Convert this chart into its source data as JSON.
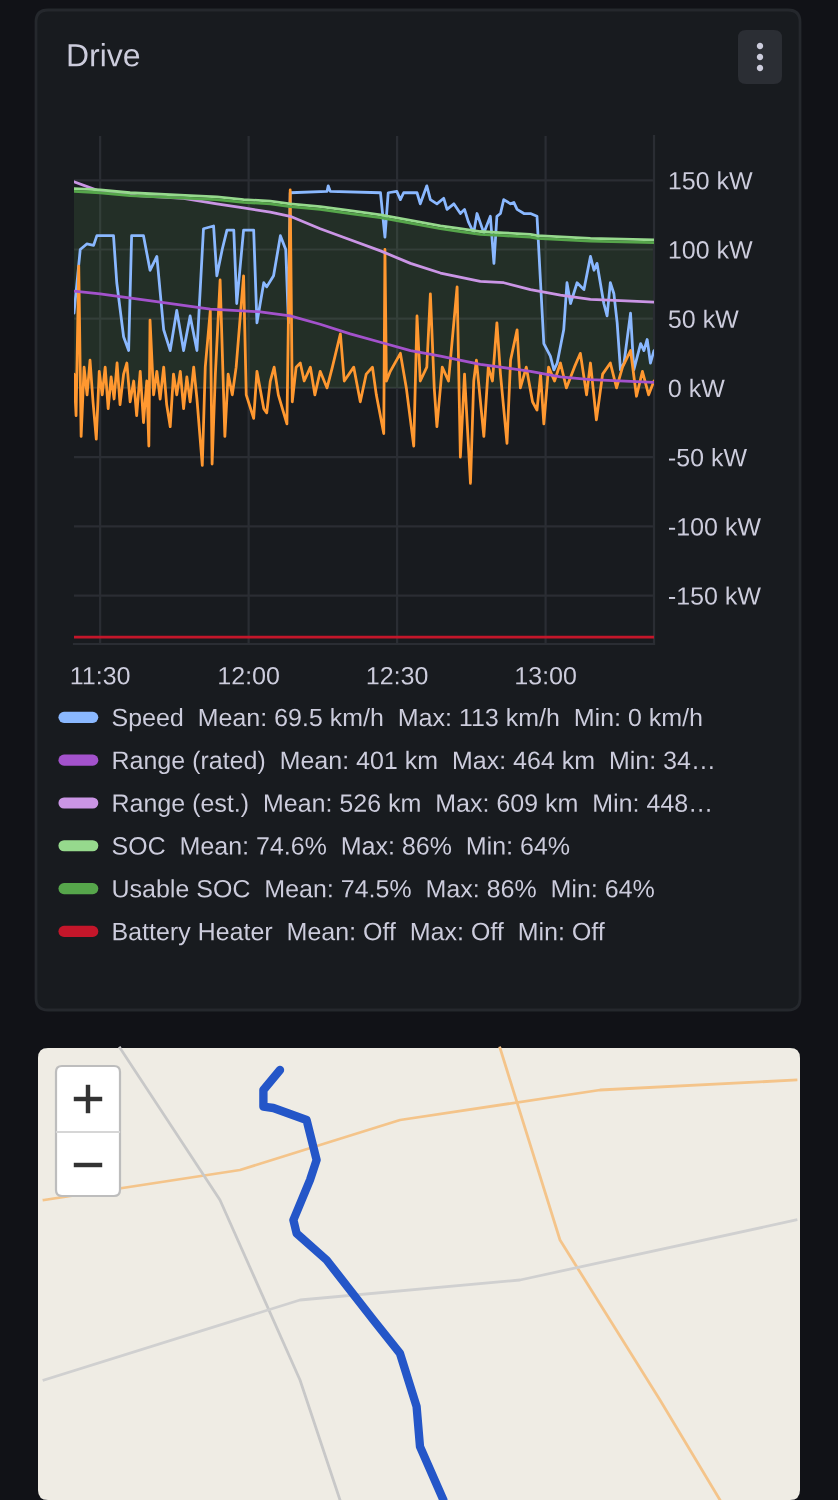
{
  "chart_data": {
    "type": "line",
    "title": "Drive",
    "xlim": [
      11.412,
      13.365
    ],
    "xticks": [
      {
        "value": 11.5,
        "label": "11:30"
      },
      {
        "value": 12,
        "label": "12:00"
      },
      {
        "value": 12.5,
        "label": "12:30"
      },
      {
        "value": 13,
        "label": "13:00"
      }
    ],
    "ylim": [
      -185,
      182
    ],
    "yticks": [
      {
        "value": -150,
        "label": "-150 kW"
      },
      {
        "value": -100,
        "label": "-100 kW"
      },
      {
        "value": -50,
        "label": "-50 kW"
      },
      {
        "value": 0,
        "label": "0 kW"
      },
      {
        "value": 50,
        "label": "50 kW"
      },
      {
        "value": 100,
        "label": "100 kW"
      },
      {
        "value": 150,
        "label": "150 kW"
      }
    ],
    "grid": true,
    "legend": "bottom",
    "series": [
      {
        "name": "Speed  Mean: 69.5 km/h  Max: 113 km/h  Min: 0 km/h",
        "color": "#8ab8ff",
        "x": [
          11.412,
          11.433,
          11.455,
          11.478,
          11.489,
          11.545,
          11.556,
          11.579,
          11.596,
          11.606,
          11.646,
          11.668,
          11.691,
          11.714,
          11.736,
          11.758,
          11.781,
          11.803,
          11.826,
          11.848,
          11.882,
          11.893,
          11.911,
          11.927,
          11.95,
          11.96,
          11.983,
          12.017,
          12.028,
          12.039,
          12.051,
          12.061,
          12.084,
          12.107,
          12.125,
          12.134,
          12.14,
          12.264,
          12.268,
          12.275,
          12.444,
          12.459,
          12.47,
          12.499,
          12.511,
          12.522,
          12.567,
          12.578,
          12.6,
          12.612,
          12.634,
          12.657,
          12.668,
          12.691,
          12.713,
          12.727,
          12.74,
          12.758,
          12.769,
          12.792,
          12.814,
          12.826,
          12.836,
          12.848,
          12.859,
          12.882,
          12.893,
          12.904,
          12.927,
          12.949,
          12.971,
          12.983,
          12.994,
          13.016,
          13.028,
          13.039,
          13.061,
          13.072,
          13.084,
          13.106,
          13.129,
          13.151,
          13.163,
          13.173,
          13.196,
          13.207,
          13.218,
          13.23,
          13.241,
          13.252,
          13.264,
          13.286,
          13.297,
          13.32,
          13.331,
          13.342,
          13.353,
          13.365
        ],
        "values": [
          54,
          100,
          104,
          103,
          110,
          110,
          76,
          37,
          27,
          110,
          110,
          85,
          95,
          42,
          27,
          56,
          27,
          52,
          27,
          115,
          117,
          81,
          100,
          114,
          114,
          61,
          114,
          114,
          47,
          61,
          76,
          73,
          81,
          110,
          100,
          47,
          141,
          142,
          146,
          142,
          141,
          109,
          141,
          142,
          136,
          141,
          141,
          133,
          146,
          136,
          133,
          137,
          129,
          133,
          126,
          129,
          120,
          112,
          126,
          112,
          124,
          90,
          124,
          126,
          136,
          133,
          134,
          129,
          126,
          126,
          124,
          76,
          32,
          23,
          13,
          18,
          42,
          76,
          61,
          76,
          71,
          95,
          85,
          90,
          61,
          52,
          76,
          68,
          47,
          13,
          18,
          54,
          13,
          32,
          27,
          35,
          18,
          27
        ]
      },
      {
        "color": "#ff9830",
        "x": [
          11.412,
          11.419,
          11.428,
          11.436,
          11.446,
          11.456,
          11.466,
          11.476,
          11.487,
          11.497,
          11.507,
          11.517,
          11.527,
          11.537,
          11.547,
          11.557,
          11.567,
          11.579,
          11.59,
          11.601,
          11.613,
          11.623,
          11.635,
          11.646,
          11.657,
          11.664,
          11.668,
          11.68,
          11.691,
          11.702,
          11.714,
          11.724,
          11.736,
          11.747,
          11.758,
          11.77,
          11.781,
          11.792,
          11.803,
          11.815,
          11.826,
          11.844,
          11.854,
          11.871,
          11.877,
          11.888,
          11.904,
          11.92,
          11.931,
          11.945,
          11.958,
          11.983,
          11.992,
          12.017,
          12.028,
          12.051,
          12.061,
          12.073,
          12.086,
          12.1,
          12.129,
          12.14,
          12.147,
          12.16,
          12.174,
          12.187,
          12.208,
          12.223,
          12.241,
          12.264,
          12.282,
          12.309,
          12.322,
          12.354,
          12.376,
          12.396,
          12.417,
          12.43,
          12.455,
          12.459,
          12.464,
          12.477,
          12.511,
          12.531,
          12.556,
          12.567,
          12.578,
          12.6,
          12.612,
          12.625,
          12.634,
          12.652,
          12.673,
          12.702,
          12.713,
          12.727,
          12.747,
          12.758,
          12.767,
          12.792,
          12.807,
          12.821,
          12.836,
          12.848,
          12.87,
          12.882,
          12.904,
          12.915,
          12.935,
          12.956,
          12.971,
          12.983,
          12.994,
          13.01,
          13.03,
          13.05,
          13.07,
          13.097,
          13.117,
          13.138,
          13.151,
          13.171,
          13.192,
          13.218,
          13.239,
          13.259,
          13.286,
          13.306,
          13.326,
          13.347,
          13.365
        ],
        "values": [
          10,
          -20,
          88,
          -35,
          15,
          -5,
          20,
          -10,
          -37,
          12,
          -5,
          15,
          -15,
          8,
          -8,
          18,
          -12,
          10,
          18,
          -10,
          5,
          -20,
          12,
          -25,
          5,
          -42,
          49,
          -5,
          12,
          -8,
          15,
          -12,
          -28,
          10,
          -5,
          12,
          -15,
          8,
          -10,
          15,
          -8,
          -56,
          15,
          56,
          -55,
          10,
          78,
          -35,
          10,
          -5,
          15,
          81,
          -5,
          -22,
          12,
          -15,
          -18,
          5,
          15,
          -5,
          -26,
          143,
          -10,
          15,
          18,
          5,
          15,
          -5,
          12,
          0,
          15,
          39,
          5,
          15,
          -10,
          10,
          15,
          -5,
          -33,
          100,
          5,
          12,
          25,
          0,
          -42,
          52,
          5,
          15,
          68,
          0,
          -28,
          15,
          5,
          73,
          -50,
          10,
          -69,
          5,
          20,
          -35,
          15,
          5,
          47,
          10,
          -40,
          20,
          42,
          0,
          15,
          -10,
          -16,
          10,
          -26,
          15,
          5,
          18,
          0,
          15,
          25,
          -5,
          18,
          -23,
          10,
          18,
          0,
          15,
          27,
          -6,
          12,
          -5,
          5
        ]
      },
      {
        "name": "Range (rated)  Mean: 401 km  Max: 464 km  Min: 34…",
        "color": "#a352cc",
        "x": [
          11.412,
          11.5,
          11.702,
          11.871,
          12.039,
          12.14,
          12.241,
          12.342,
          12.444,
          12.545,
          12.646,
          12.78,
          12.848,
          12.949,
          13.05,
          13.151,
          13.365
        ],
        "values": [
          70,
          68,
          62,
          57,
          55,
          52,
          46,
          39,
          33,
          27,
          23,
          17,
          15,
          12,
          8,
          6,
          4
        ]
      },
      {
        "name": "Range (est.)  Mean: 526 km  Max: 609 km  Min: 448…",
        "color": "#ca95e5",
        "x": [
          11.412,
          11.5,
          11.623,
          11.781,
          11.893,
          11.983,
          12.073,
          12.14,
          12.241,
          12.342,
          12.444,
          12.545,
          12.646,
          12.78,
          12.859,
          12.949,
          13.05,
          13.151,
          13.252,
          13.365
        ],
        "values": [
          149,
          142,
          139,
          137,
          133,
          130,
          127,
          124,
          115,
          107,
          99,
          90,
          83,
          77,
          76,
          71,
          67,
          64,
          63,
          62
        ]
      },
      {
        "name": "SOC  Mean: 74.6%  Max: 86%  Min: 64%",
        "color": "#96d98d",
        "type": "area",
        "x": [
          11.412,
          11.5,
          11.601,
          11.803,
          11.893,
          11.983,
          12.073,
          12.14,
          12.241,
          12.342,
          12.444,
          12.545,
          12.646,
          12.713,
          12.78,
          12.859,
          12.949,
          12.971,
          13.151,
          13.365
        ],
        "values": [
          144,
          143,
          141,
          139,
          138,
          136,
          135,
          133,
          131,
          128,
          125,
          121,
          117,
          115,
          113,
          112,
          111,
          110,
          108,
          107
        ]
      },
      {
        "name": "Usable SOC  Mean: 74.5%  Max: 86%  Min: 64%",
        "color": "#56a64b",
        "type": "area",
        "x": [
          11.412,
          11.5,
          11.601,
          11.803,
          11.893,
          11.983,
          12.073,
          12.14,
          12.241,
          12.342,
          12.444,
          12.545,
          12.646,
          12.713,
          12.78,
          12.859,
          12.949,
          12.971,
          13.151,
          13.365
        ],
        "values": [
          142,
          141,
          139,
          137,
          136,
          134,
          133,
          131,
          129,
          126,
          123,
          119,
          115,
          113,
          111,
          110,
          109,
          108,
          106,
          105
        ]
      },
      {
        "name": "Battery Heater  Mean: Off  Max: Off  Min: Off",
        "color": "#c4162a",
        "x": [
          11.412,
          13.365
        ],
        "values": [
          -180,
          -180
        ]
      }
    ]
  }
}
